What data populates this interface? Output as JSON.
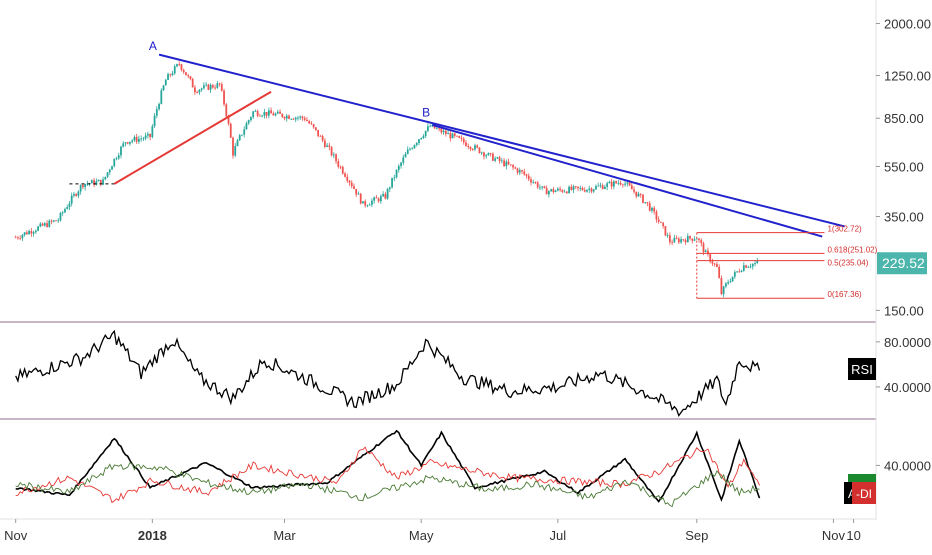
{
  "chart_data": [
    {
      "type": "candlestick",
      "panel": "price",
      "y_scale": "log",
      "ylim": [
        140,
        2300
      ],
      "y_ticks": [
        "2000.00",
        "1250.00",
        "850.00",
        "550.00",
        "350.00",
        "150.00"
      ],
      "y_tick_values": [
        2000,
        1250,
        850,
        550,
        350,
        150
      ],
      "last_price": "229.52",
      "last_price_value": 229.52,
      "up_color": "#26a69a",
      "down_color": "#ef5350",
      "price_path": [
        [
          "2017-11-01",
          290
        ],
        [
          "2017-11-20",
          340
        ],
        [
          "2017-12-01",
          470
        ],
        [
          "2017-12-10",
          480
        ],
        [
          "2017-12-20",
          690
        ],
        [
          "2017-12-31",
          720
        ],
        [
          "2018-01-07",
          1200
        ],
        [
          "2018-01-13",
          1390
        ],
        [
          "2018-01-20",
          1100
        ],
        [
          "2018-01-31",
          1150
        ],
        [
          "2018-02-06",
          620
        ],
        [
          "2018-02-15",
          900
        ],
        [
          "2018-02-25",
          880
        ],
        [
          "2018-03-10",
          850
        ],
        [
          "2018-03-25",
          560
        ],
        [
          "2018-04-05",
          390
        ],
        [
          "2018-04-15",
          420
        ],
        [
          "2018-04-25",
          630
        ],
        [
          "2018-05-05",
          790
        ],
        [
          "2018-05-15",
          720
        ],
        [
          "2018-06-01",
          600
        ],
        [
          "2018-06-15",
          520
        ],
        [
          "2018-06-25",
          440
        ],
        [
          "2018-07-15",
          450
        ],
        [
          "2018-07-30",
          480
        ],
        [
          "2018-08-10",
          390
        ],
        [
          "2018-08-20",
          280
        ],
        [
          "2018-09-01",
          290
        ],
        [
          "2018-09-05",
          250
        ],
        [
          "2018-09-10",
          220
        ],
        [
          "2018-09-12",
          175
        ],
        [
          "2018-09-15",
          195
        ],
        [
          "2018-09-22",
          225
        ],
        [
          "2018-09-28",
          229.52
        ]
      ],
      "points": [
        {
          "label": "A",
          "date": "2018-01-03",
          "price": 1530,
          "color": "#1a1ac8"
        },
        {
          "label": "B",
          "date": "2018-05-05",
          "price": 840,
          "color": "#1a1ac8"
        }
      ],
      "trendlines": [
        {
          "from": [
            "2018-01-04",
            1510
          ],
          "to": [
            "2018-11-06",
            320
          ],
          "color": "#2222cc"
        },
        {
          "from": [
            "2018-05-06",
            800
          ],
          "to": [
            "2018-10-27",
            292
          ],
          "color": "#2222cc"
        },
        {
          "from": [
            "2017-12-15",
            470
          ],
          "to": [
            "2018-02-23",
            1080
          ],
          "color": "#e53935"
        }
      ],
      "support_line": {
        "from": [
          "2017-11-25",
          470
        ],
        "to": [
          "2017-12-15",
          470
        ]
      },
      "fibonacci": {
        "from_date": "2018-09-01",
        "to_date": "2018-10-28",
        "color": "#e53935",
        "levels": [
          {
            "text": "1(302.72)",
            "value": 302.72
          },
          {
            "text": "0.618(251.02)",
            "value": 251.02
          },
          {
            "text": "0.5(235.04)",
            "value": 235.04
          },
          {
            "text": "0(167.36)",
            "value": 167.36
          }
        ]
      }
    },
    {
      "type": "line",
      "panel": "rsi",
      "ylim": [
        15,
        95
      ],
      "y_ticks": [
        "80.0000",
        "40.0000"
      ],
      "y_tick_values": [
        80,
        40
      ],
      "label": "RSI",
      "color": "#000000",
      "series_path": [
        [
          "2017-11-01",
          48
        ],
        [
          "2017-12-01",
          66
        ],
        [
          "2017-12-15",
          86
        ],
        [
          "2017-12-27",
          52
        ],
        [
          "2018-01-10",
          82
        ],
        [
          "2018-01-22",
          48
        ],
        [
          "2018-02-06",
          30
        ],
        [
          "2018-02-20",
          64
        ],
        [
          "2018-03-10",
          48
        ],
        [
          "2018-04-01",
          26
        ],
        [
          "2018-04-20",
          42
        ],
        [
          "2018-05-03",
          80
        ],
        [
          "2018-05-20",
          48
        ],
        [
          "2018-06-10",
          36
        ],
        [
          "2018-07-01",
          40
        ],
        [
          "2018-07-20",
          52
        ],
        [
          "2018-08-10",
          34
        ],
        [
          "2018-08-25",
          18
        ],
        [
          "2018-09-10",
          46
        ],
        [
          "2018-09-14",
          24
        ],
        [
          "2018-09-20",
          64
        ],
        [
          "2018-09-29",
          54
        ]
      ]
    },
    {
      "type": "line",
      "panel": "dmi",
      "ylim": [
        0,
        75
      ],
      "y_ticks": [
        "40.0000"
      ],
      "y_tick_values": [
        40
      ],
      "legend_badges": [
        "ADX",
        "-DI"
      ],
      "series": [
        {
          "color": "#000000",
          "path": [
            [
              "2017-11-01",
              22
            ],
            [
              "2017-11-25",
              16
            ],
            [
              "2017-12-15",
              62
            ],
            [
              "2017-12-31",
              22
            ],
            [
              "2018-01-25",
              42
            ],
            [
              "2018-02-15",
              22
            ],
            [
              "2018-03-20",
              26
            ],
            [
              "2018-04-20",
              68
            ],
            [
              "2018-05-01",
              40
            ],
            [
              "2018-05-10",
              66
            ],
            [
              "2018-05-25",
              22
            ],
            [
              "2018-06-25",
              35
            ],
            [
              "2018-07-10",
              18
            ],
            [
              "2018-07-31",
              45
            ],
            [
              "2018-08-15",
              10
            ],
            [
              "2018-09-01",
              66
            ],
            [
              "2018-09-12",
              12
            ],
            [
              "2018-09-20",
              60
            ],
            [
              "2018-09-29",
              14
            ]
          ]
        },
        {
          "color": "#e53935",
          "path": [
            [
              "2017-11-01",
              18
            ],
            [
              "2017-11-25",
              30
            ],
            [
              "2017-12-15",
              12
            ],
            [
              "2018-01-01",
              28
            ],
            [
              "2018-01-25",
              18
            ],
            [
              "2018-02-15",
              40
            ],
            [
              "2018-03-25",
              26
            ],
            [
              "2018-04-05",
              55
            ],
            [
              "2018-04-20",
              30
            ],
            [
              "2018-05-05",
              42
            ],
            [
              "2018-06-10",
              30
            ],
            [
              "2018-07-01",
              28
            ],
            [
              "2018-07-30",
              25
            ],
            [
              "2018-08-15",
              35
            ],
            [
              "2018-09-05",
              55
            ],
            [
              "2018-09-15",
              22
            ],
            [
              "2018-09-22",
              45
            ],
            [
              "2018-09-29",
              22
            ]
          ]
        },
        {
          "color": "#4a7a35",
          "path": [
            [
              "2017-11-01",
              25
            ],
            [
              "2017-11-25",
              18
            ],
            [
              "2017-12-15",
              40
            ],
            [
              "2018-01-05",
              38
            ],
            [
              "2018-01-25",
              26
            ],
            [
              "2018-02-15",
              18
            ],
            [
              "2018-03-10",
              25
            ],
            [
              "2018-04-05",
              14
            ],
            [
              "2018-05-05",
              30
            ],
            [
              "2018-06-01",
              20
            ],
            [
              "2018-06-20",
              25
            ],
            [
              "2018-07-15",
              14
            ],
            [
              "2018-08-01",
              28
            ],
            [
              "2018-08-20",
              8
            ],
            [
              "2018-09-10",
              35
            ],
            [
              "2018-09-20",
              18
            ],
            [
              "2018-09-29",
              22
            ]
          ]
        }
      ]
    }
  ],
  "time_axis": {
    "range": [
      "2017-10-25",
      "2018-11-20"
    ],
    "ticks": [
      {
        "label": "Nov",
        "date": "2017-11-01",
        "bold": false
      },
      {
        "label": "2018",
        "date": "2018-01-01",
        "bold": true
      },
      {
        "label": "Mar",
        "date": "2018-03-01",
        "bold": false
      },
      {
        "label": "May",
        "date": "2018-05-01",
        "bold": false
      },
      {
        "label": "Jul",
        "date": "2018-07-01",
        "bold": false
      },
      {
        "label": "Sep",
        "date": "2018-09-01",
        "bold": false
      },
      {
        "label": "Nov",
        "date": "2018-11-01",
        "bold": false
      },
      {
        "label": "10",
        "date": "2018-11-10",
        "bold": false
      }
    ]
  },
  "colors": {
    "price_badge": "#4db6ac",
    "separator": "#8e6e8e",
    "adx_badge": "#1b8a2e",
    "di_badge": "#d32f2f"
  }
}
